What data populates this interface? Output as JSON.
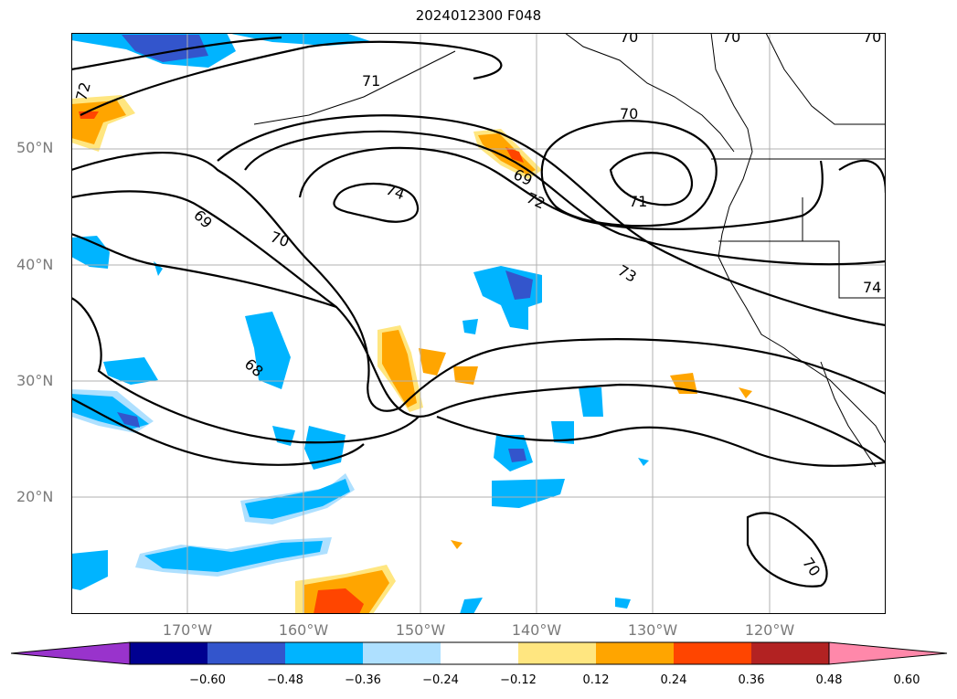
{
  "title": "2024012300 F048",
  "lat_labels": [
    "50°N",
    "40°N",
    "30°N",
    "20°N"
  ],
  "lon_labels": [
    "170°W",
    "160°W",
    "150°W",
    "140°W",
    "130°W",
    "120°W"
  ],
  "contour_labels": [
    "70",
    "70",
    "70",
    "71",
    "70",
    "72",
    "74",
    "69",
    "71",
    "72",
    "69",
    "70",
    "73",
    "74",
    "68",
    "70"
  ],
  "colorbar": {
    "ticks": [
      "−0.60",
      "−0.48",
      "−0.36",
      "−0.24",
      "−0.12",
      "0.12",
      "0.24",
      "0.36",
      "0.48",
      "0.60"
    ],
    "colors": [
      "#9933cc",
      "#000090",
      "#3355cc",
      "#00b4ff",
      "#aee0ff",
      "#ffffff",
      "#ffe680",
      "#ffa500",
      "#ff4500",
      "#b22222",
      "#ff88aa"
    ]
  }
}
